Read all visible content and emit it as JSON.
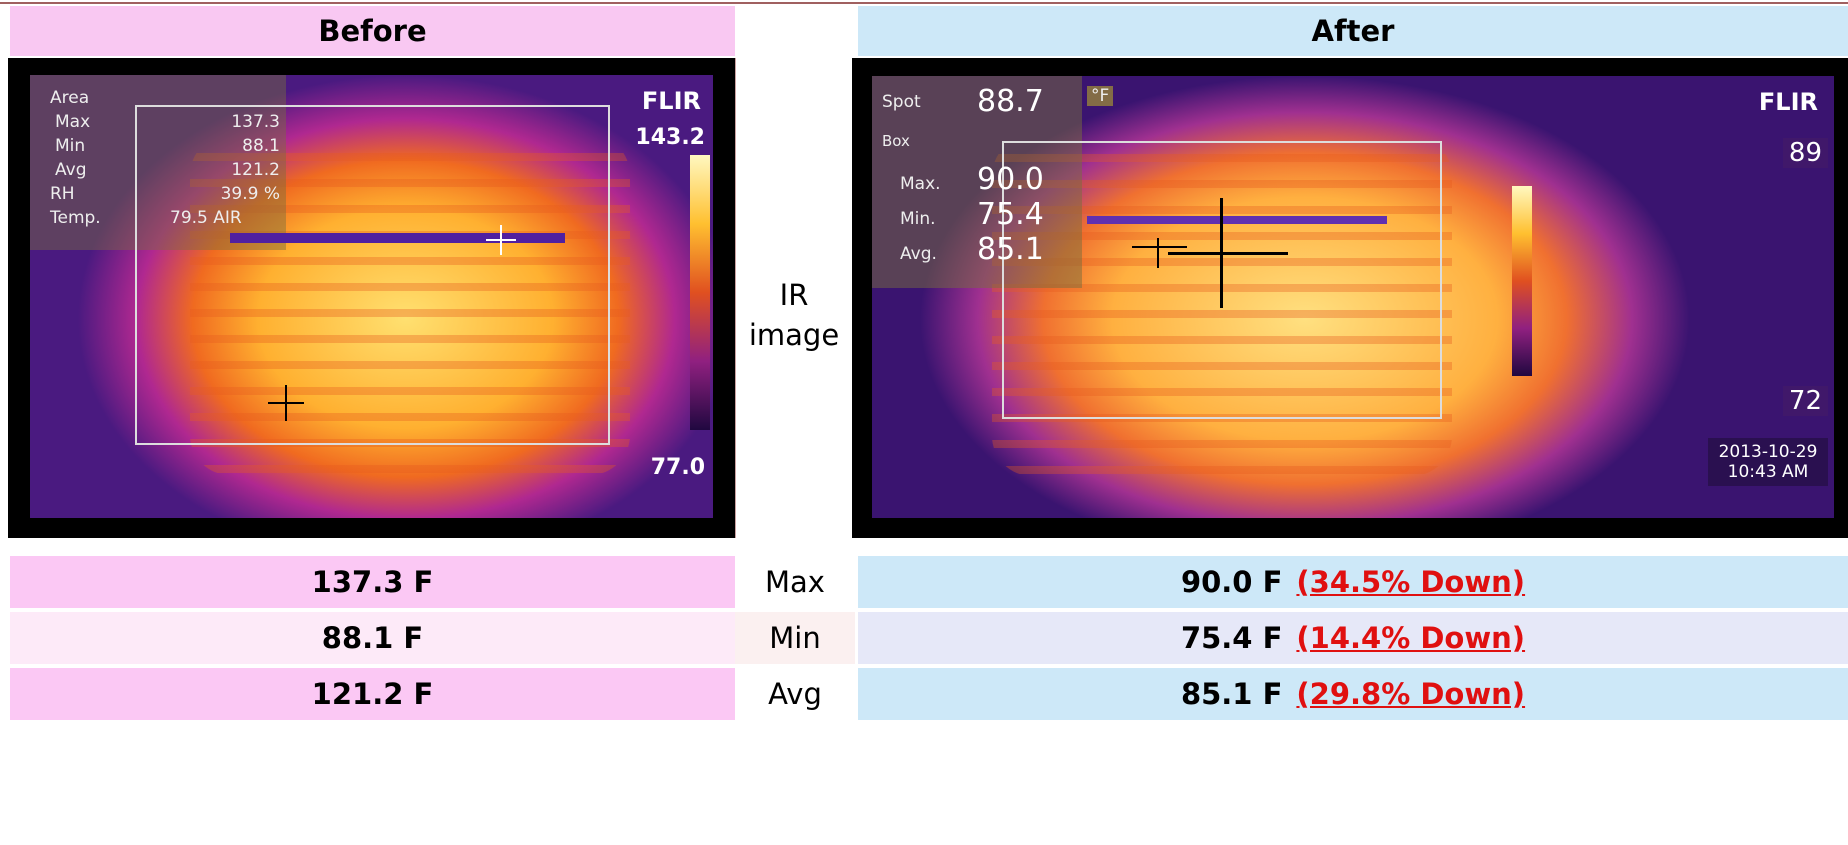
{
  "header": {
    "before": "Before",
    "after": "After"
  },
  "middle_label": "IR image",
  "before_image": {
    "labels": [
      "Area",
      "Max",
      "Min",
      "Avg",
      "RH",
      "Temp."
    ],
    "values": [
      "137.3",
      "88.1",
      "121.2",
      "39.9 %",
      "79.5 AIR"
    ],
    "brand": "FLIR",
    "scale_max": "143.2",
    "scale_min": "77.0"
  },
  "after_image": {
    "spot_label": "Spot",
    "spot_value": "88.7",
    "unit": "°F",
    "box_label": "Box",
    "labels": [
      "Max.",
      "Min.",
      "Avg."
    ],
    "values": [
      "90.0",
      "75.4",
      "85.1"
    ],
    "brand": "FLIR",
    "scale_max": "89",
    "scale_min": "72",
    "date": "2013-10-29",
    "time": "10:43 AM"
  },
  "table": {
    "rows": [
      {
        "before": "137.3 F",
        "metric": "Max",
        "after": "90.0 F",
        "change": "(34.5% Down)"
      },
      {
        "before": "88.1 F",
        "metric": "Min",
        "after": "75.4 F",
        "change": "(14.4% Down)"
      },
      {
        "before": "121.2 F",
        "metric": "Avg",
        "after": "85.1 F",
        "change": "(29.8% Down)"
      }
    ]
  }
}
